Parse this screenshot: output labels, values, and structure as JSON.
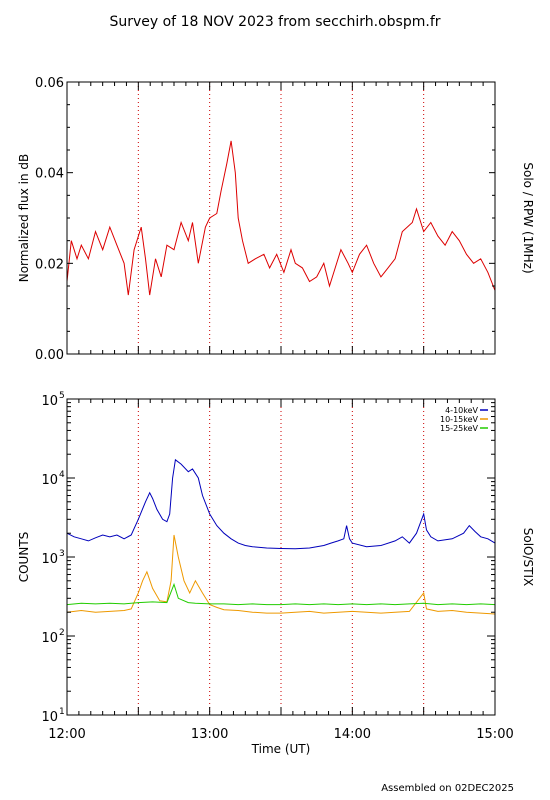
{
  "title": "Survey of 18 NOV 2023 from secchirh.obspm.fr",
  "footer": "Assembled on 02DEC2025",
  "colors": {
    "rpw": "#dd0000",
    "stix_low": "#0000bb",
    "stix_mid": "#ee9900",
    "stix_high": "#22cc00",
    "marker": "#cc0000",
    "axis": "#000000"
  },
  "chart_data": [
    {
      "type": "line",
      "ylabel": "Normalized flux in dB",
      "right_label": "Solo / RPW (1MHz)",
      "xlim_hours": [
        12.0,
        15.0
      ],
      "ylim": [
        0.0,
        0.06
      ],
      "yscale": "linear",
      "yticks": [
        "0.00",
        "0.02",
        "0.04",
        "0.06"
      ],
      "ytick_values": [
        0.0,
        0.02,
        0.04,
        0.06
      ],
      "vertical_markers_hours": [
        12.5,
        13.0,
        13.5,
        14.0,
        14.5
      ],
      "series": [
        {
          "color": "#dd0000",
          "points": [
            [
              12.0,
              0.016
            ],
            [
              12.03,
              0.025
            ],
            [
              12.07,
              0.021
            ],
            [
              12.1,
              0.024
            ],
            [
              12.15,
              0.021
            ],
            [
              12.2,
              0.027
            ],
            [
              12.25,
              0.023
            ],
            [
              12.3,
              0.028
            ],
            [
              12.35,
              0.024
            ],
            [
              12.4,
              0.02
            ],
            [
              12.43,
              0.013
            ],
            [
              12.47,
              0.023
            ],
            [
              12.52,
              0.028
            ],
            [
              12.55,
              0.021
            ],
            [
              12.58,
              0.013
            ],
            [
              12.62,
              0.021
            ],
            [
              12.66,
              0.017
            ],
            [
              12.7,
              0.024
            ],
            [
              12.75,
              0.023
            ],
            [
              12.8,
              0.029
            ],
            [
              12.85,
              0.025
            ],
            [
              12.88,
              0.029
            ],
            [
              12.92,
              0.02
            ],
            [
              12.97,
              0.028
            ],
            [
              13.0,
              0.03
            ],
            [
              13.05,
              0.031
            ],
            [
              13.08,
              0.036
            ],
            [
              13.12,
              0.042
            ],
            [
              13.15,
              0.047
            ],
            [
              13.18,
              0.04
            ],
            [
              13.2,
              0.03
            ],
            [
              13.23,
              0.025
            ],
            [
              13.27,
              0.02
            ],
            [
              13.32,
              0.021
            ],
            [
              13.38,
              0.022
            ],
            [
              13.42,
              0.019
            ],
            [
              13.47,
              0.022
            ],
            [
              13.52,
              0.018
            ],
            [
              13.57,
              0.023
            ],
            [
              13.6,
              0.02
            ],
            [
              13.65,
              0.019
            ],
            [
              13.7,
              0.016
            ],
            [
              13.75,
              0.017
            ],
            [
              13.8,
              0.02
            ],
            [
              13.84,
              0.015
            ],
            [
              13.88,
              0.019
            ],
            [
              13.92,
              0.023
            ],
            [
              13.97,
              0.02
            ],
            [
              14.0,
              0.018
            ],
            [
              14.05,
              0.022
            ],
            [
              14.1,
              0.024
            ],
            [
              14.15,
              0.02
            ],
            [
              14.2,
              0.017
            ],
            [
              14.25,
              0.019
            ],
            [
              14.3,
              0.021
            ],
            [
              14.35,
              0.027
            ],
            [
              14.42,
              0.029
            ],
            [
              14.45,
              0.032
            ],
            [
              14.5,
              0.027
            ],
            [
              14.55,
              0.029
            ],
            [
              14.6,
              0.026
            ],
            [
              14.65,
              0.024
            ],
            [
              14.7,
              0.027
            ],
            [
              14.75,
              0.025
            ],
            [
              14.8,
              0.022
            ],
            [
              14.85,
              0.02
            ],
            [
              14.9,
              0.021
            ],
            [
              14.95,
              0.018
            ],
            [
              15.0,
              0.014
            ]
          ]
        }
      ]
    },
    {
      "type": "line",
      "ylabel": "COUNTS",
      "right_label": "SolO/STIX",
      "xlabel": "Time (UT)",
      "xlim_hours": [
        12.0,
        15.0
      ],
      "xticks": [
        "12:00",
        "13:00",
        "14:00",
        "15:00"
      ],
      "xtick_values": [
        12.0,
        13.0,
        14.0,
        15.0
      ],
      "ylim": [
        10,
        100000
      ],
      "yscale": "log",
      "yticks": [
        "10",
        "10",
        "10",
        "10",
        "10"
      ],
      "ytick_exponents": [
        "1",
        "2",
        "3",
        "4",
        "5"
      ],
      "ytick_values": [
        10,
        100,
        1000,
        10000,
        100000
      ],
      "vertical_markers_hours": [
        12.5,
        13.0,
        13.5,
        14.0,
        14.5
      ],
      "legend_position": "top-right",
      "series": [
        {
          "name": "4-10keV",
          "color": "#0000bb",
          "points": [
            [
              12.0,
              2000
            ],
            [
              12.05,
              1800
            ],
            [
              12.1,
              1700
            ],
            [
              12.15,
              1600
            ],
            [
              12.2,
              1750
            ],
            [
              12.25,
              1900
            ],
            [
              12.3,
              1800
            ],
            [
              12.35,
              1900
            ],
            [
              12.4,
              1700
            ],
            [
              12.45,
              1900
            ],
            [
              12.5,
              3000
            ],
            [
              12.55,
              5000
            ],
            [
              12.58,
              6500
            ],
            [
              12.6,
              5500
            ],
            [
              12.63,
              4000
            ],
            [
              12.67,
              3000
            ],
            [
              12.7,
              2800
            ],
            [
              12.72,
              3500
            ],
            [
              12.74,
              10000
            ],
            [
              12.76,
              17000
            ],
            [
              12.8,
              15000
            ],
            [
              12.85,
              12000
            ],
            [
              12.88,
              13000
            ],
            [
              12.92,
              10000
            ],
            [
              12.95,
              6000
            ],
            [
              13.0,
              3500
            ],
            [
              13.05,
              2500
            ],
            [
              13.1,
              2000
            ],
            [
              13.15,
              1700
            ],
            [
              13.2,
              1500
            ],
            [
              13.25,
              1400
            ],
            [
              13.3,
              1350
            ],
            [
              13.4,
              1300
            ],
            [
              13.5,
              1280
            ],
            [
              13.6,
              1270
            ],
            [
              13.7,
              1300
            ],
            [
              13.8,
              1400
            ],
            [
              13.85,
              1500
            ],
            [
              13.9,
              1600
            ],
            [
              13.94,
              1700
            ],
            [
              13.96,
              2500
            ],
            [
              13.98,
              1700
            ],
            [
              14.0,
              1500
            ],
            [
              14.1,
              1350
            ],
            [
              14.2,
              1400
            ],
            [
              14.3,
              1600
            ],
            [
              14.35,
              1800
            ],
            [
              14.4,
              1500
            ],
            [
              14.45,
              2000
            ],
            [
              14.5,
              3500
            ],
            [
              14.52,
              2200
            ],
            [
              14.55,
              1800
            ],
            [
              14.6,
              1600
            ],
            [
              14.7,
              1700
            ],
            [
              14.78,
              2000
            ],
            [
              14.82,
              2500
            ],
            [
              14.86,
              2100
            ],
            [
              14.9,
              1800
            ],
            [
              14.95,
              1700
            ],
            [
              15.0,
              1500
            ]
          ]
        },
        {
          "name": "10-15keV",
          "color": "#ee9900",
          "points": [
            [
              12.0,
              200
            ],
            [
              12.1,
              210
            ],
            [
              12.2,
              200
            ],
            [
              12.3,
              205
            ],
            [
              12.4,
              210
            ],
            [
              12.45,
              220
            ],
            [
              12.5,
              350
            ],
            [
              12.53,
              500
            ],
            [
              12.56,
              650
            ],
            [
              12.6,
              400
            ],
            [
              12.65,
              280
            ],
            [
              12.7,
              270
            ],
            [
              12.73,
              500
            ],
            [
              12.75,
              1900
            ],
            [
              12.78,
              1000
            ],
            [
              12.82,
              500
            ],
            [
              12.86,
              350
            ],
            [
              12.9,
              500
            ],
            [
              12.95,
              350
            ],
            [
              13.0,
              250
            ],
            [
              13.05,
              230
            ],
            [
              13.1,
              215
            ],
            [
              13.2,
              210
            ],
            [
              13.3,
              200
            ],
            [
              13.4,
              195
            ],
            [
              13.5,
              195
            ],
            [
              13.6,
              200
            ],
            [
              13.7,
              205
            ],
            [
              13.8,
              195
            ],
            [
              13.9,
              200
            ],
            [
              14.0,
              205
            ],
            [
              14.1,
              200
            ],
            [
              14.2,
              195
            ],
            [
              14.3,
              200
            ],
            [
              14.4,
              205
            ],
            [
              14.5,
              350
            ],
            [
              14.52,
              220
            ],
            [
              14.6,
              205
            ],
            [
              14.7,
              210
            ],
            [
              14.8,
              200
            ],
            [
              14.9,
              195
            ],
            [
              15.0,
              190
            ]
          ]
        },
        {
          "name": "15-25keV",
          "color": "#22cc00",
          "points": [
            [
              12.0,
              250
            ],
            [
              12.1,
              260
            ],
            [
              12.2,
              255
            ],
            [
              12.3,
              260
            ],
            [
              12.4,
              255
            ],
            [
              12.5,
              265
            ],
            [
              12.6,
              270
            ],
            [
              12.7,
              265
            ],
            [
              12.75,
              450
            ],
            [
              12.78,
              300
            ],
            [
              12.85,
              265
            ],
            [
              12.9,
              260
            ],
            [
              13.0,
              255
            ],
            [
              13.1,
              255
            ],
            [
              13.2,
              250
            ],
            [
              13.3,
              255
            ],
            [
              13.4,
              250
            ],
            [
              13.5,
              250
            ],
            [
              13.6,
              255
            ],
            [
              13.7,
              250
            ],
            [
              13.8,
              255
            ],
            [
              13.9,
              250
            ],
            [
              14.0,
              255
            ],
            [
              14.1,
              250
            ],
            [
              14.2,
              255
            ],
            [
              14.3,
              250
            ],
            [
              14.4,
              255
            ],
            [
              14.5,
              260
            ],
            [
              14.6,
              250
            ],
            [
              14.7,
              255
            ],
            [
              14.8,
              250
            ],
            [
              14.9,
              255
            ],
            [
              15.0,
              250
            ]
          ]
        }
      ]
    }
  ]
}
